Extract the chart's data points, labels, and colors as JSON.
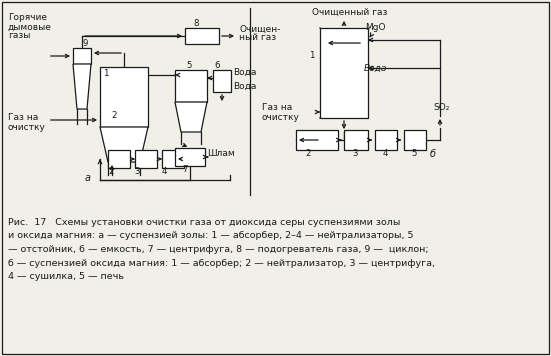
{
  "bg_color": "#f0efe8",
  "line_color": "#1a1a1a",
  "fig_width": 5.51,
  "fig_height": 3.56,
  "caption_line1": "Рис.  17   Схемы установки очистки газа от диоксида серы суспензиями золы",
  "caption_line2": "и оксида магния: а — суспензией золы: 1 — абсорбер, 2–4 — нейтрализаторы, 5",
  "caption_line3": "— отстойник, 6 — емкость, 7 — центрифуга, 8 — подогреватель газа, 9 —  циклон;",
  "caption_line4": "б — суспензией оксида магния: 1 — абсорбер; 2 — нейтрализатор, 3 — центрифуга,",
  "caption_line5": "4 — сушилка, 5 — печь"
}
